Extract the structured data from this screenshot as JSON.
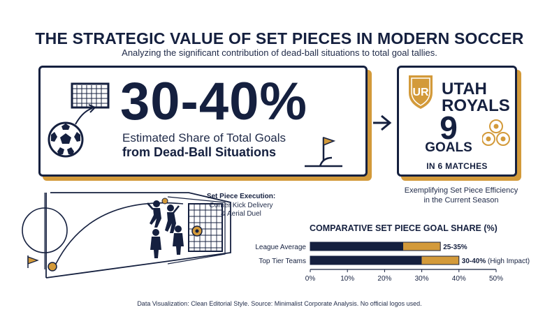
{
  "header": {
    "title": "THE STRATEGIC VALUE OF SET PIECES IN MODERN SOCCER",
    "subtitle": "Analyzing the significant contribution of dead-ball situations to total goal tallies."
  },
  "hero": {
    "stat": "30-40%",
    "desc_line1": "Estimated Share of Total Goals",
    "desc_line2": "from Dead-Ball Situations"
  },
  "team": {
    "name_line1": "UTAH",
    "name_line2": "ROYALS",
    "logo_text": "UR",
    "goals": "9",
    "goals_label": "GOALS",
    "matches_label": "IN 6 MATCHES",
    "caption_line1": "Exemplifying Set Piece Efficiency",
    "caption_line2": "in the Current Season"
  },
  "set_piece": {
    "title": "Set Piece Execution:",
    "line1": "Corner Kick Delivery",
    "line2": "& Aerial Duel"
  },
  "colors": {
    "navy": "#15203f",
    "gold": "#d39a3a"
  },
  "chart_data": {
    "type": "bar",
    "orientation": "horizontal",
    "stacked": true,
    "title": "COMPARATIVE SET PIECE GOAL SHARE (%)",
    "categories": [
      "League Average",
      "Top Tier Teams"
    ],
    "series": [
      {
        "values": [
          25,
          30
        ],
        "color": "#15203f"
      },
      {
        "values": [
          10,
          10
        ],
        "color": "#d39a3a"
      }
    ],
    "data_labels": [
      "25-35%",
      "30-40% (High Impact)"
    ],
    "xlim": [
      0,
      50
    ],
    "xticks": [
      "0%",
      "10%",
      "20%",
      "30%",
      "40%",
      "50%"
    ],
    "xtick_values": [
      0,
      10,
      20,
      30,
      40,
      50
    ],
    "grid": false,
    "legend": "none"
  },
  "footer": "Data Visualization: Clean Editorial Style. Source: Minimalist Corporate Analysis. No official logos used."
}
